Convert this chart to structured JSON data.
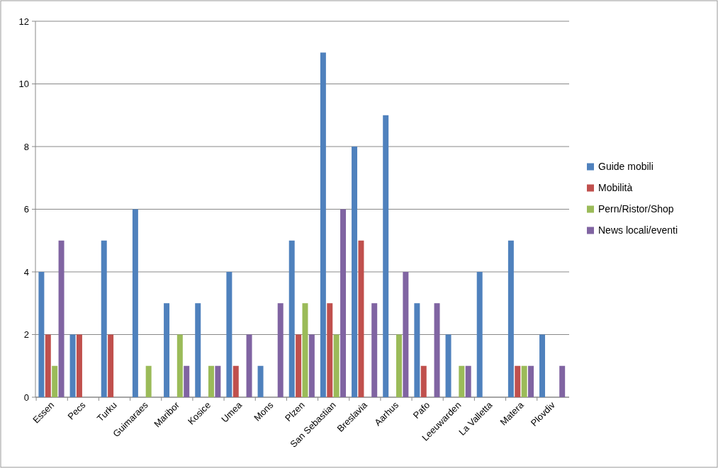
{
  "chart_data": {
    "type": "bar",
    "categories": [
      "Essen",
      "Pecs",
      "Turku",
      "Guimaraes",
      "Maribor",
      "Kosice",
      "Umea",
      "Mons",
      "Plzen",
      "San Sebastian",
      "Breslavia",
      "Aarhus",
      "Pafo",
      "Leeuwarden",
      "La Valletta",
      "Matera",
      "Plovdiv"
    ],
    "series": [
      {
        "name": "Guide mobili",
        "color": "#4f81bd",
        "values": [
          4,
          2,
          5,
          6,
          3,
          3,
          4,
          1,
          5,
          11,
          8,
          9,
          3,
          2,
          4,
          5,
          2
        ]
      },
      {
        "name": "Mobilità",
        "color": "#c0504d",
        "values": [
          2,
          2,
          2,
          0,
          0,
          0,
          1,
          0,
          2,
          3,
          5,
          0,
          1,
          0,
          0,
          1,
          0
        ]
      },
      {
        "name": "Pern/Ristor/Shop",
        "color": "#9bbb59",
        "values": [
          1,
          0,
          0,
          1,
          2,
          1,
          0,
          0,
          3,
          2,
          0,
          2,
          0,
          1,
          0,
          1,
          0
        ]
      },
      {
        "name": "News locali/eventi",
        "color": "#8064a2",
        "values": [
          5,
          0,
          0,
          0,
          1,
          1,
          2,
          3,
          2,
          6,
          3,
          4,
          3,
          1,
          0,
          1,
          1
        ]
      }
    ],
    "ylim": [
      0,
      12
    ],
    "yticks": [
      0,
      2,
      4,
      6,
      8,
      10,
      12
    ],
    "grid": "y",
    "legend": "right"
  }
}
